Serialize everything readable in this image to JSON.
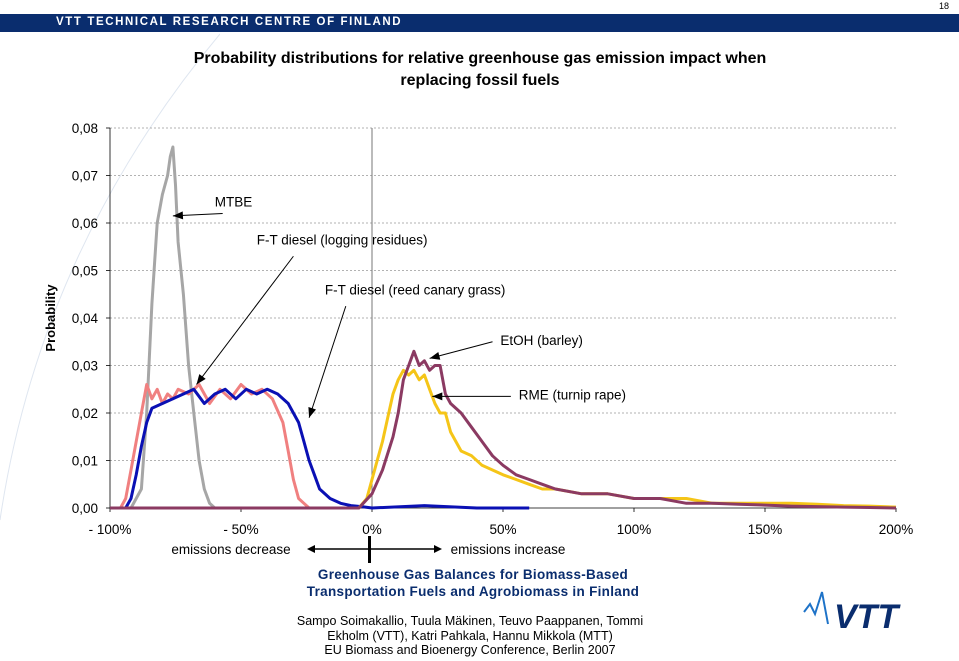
{
  "page_number": "18",
  "header": {
    "org": "VTT TECHNICAL RESEARCH CENTRE OF FINLAND"
  },
  "title_line1": "Probability distributions for relative greenhouse gas emission impact when",
  "title_line2": "replacing fossil fuels",
  "footer": {
    "subtitle_line1": "Greenhouse Gas Balances for Biomass-Based",
    "subtitle_line2": "Transportation Fuels and Agrobiomass in Finland",
    "authors_line1": "Sampo Soimakallio, Tuula Mäkinen, Teuvo Paappanen, Tommi",
    "authors_line2": "Ekholm (VTT), Katri Pahkala, Hannu Mikkola (MTT)",
    "authors_line3": "EU Biomass and Bioenergy Conference, Berlin 2007",
    "logo_text": "VTT"
  },
  "colors": {
    "mtbe": "#a6a6a6",
    "ft_logging": "#f08080",
    "ft_reed": "#0a10b4",
    "etoh": "#8b3a62",
    "rme": "#f5c518",
    "header": "#0a2d6e"
  },
  "chart_data": {
    "type": "line",
    "title": "Probability distributions for relative greenhouse gas emission impact when replacing fossil fuels",
    "ylabel": "Probability",
    "xlabel": "",
    "xlim": [
      -100,
      200
    ],
    "ylim": [
      0,
      0.08
    ],
    "grid": "horizontal dashed",
    "x_tick_labels": [
      "- 100%",
      "- 50%",
      "0%",
      "50%",
      "100%",
      "150%",
      "200%"
    ],
    "x_ticks": [
      -100,
      -50,
      0,
      50,
      100,
      150,
      200
    ],
    "y_tick_labels": [
      "0,00",
      "0,01",
      "0,02",
      "0,03",
      "0,04",
      "0,05",
      "0,06",
      "0,07",
      "0,08"
    ],
    "y_ticks": [
      0,
      0.01,
      0.02,
      0.03,
      0.04,
      0.05,
      0.06,
      0.07,
      0.08
    ],
    "direction_labels": {
      "left": "emissions decrease",
      "right": "emissions increase"
    },
    "series": [
      {
        "name": "MTBE",
        "color": "#a6a6a6",
        "x": [
          -100,
          -92,
          -88,
          -86,
          -84,
          -82,
          -80,
          -78,
          -77,
          -76,
          -75,
          -74,
          -72,
          -70,
          -68,
          -66,
          -64,
          -62,
          -60,
          -58,
          -55,
          -50,
          -40,
          -20
        ],
        "y": [
          0,
          0,
          0.004,
          0.02,
          0.043,
          0.06,
          0.066,
          0.07,
          0.074,
          0.076,
          0.068,
          0.056,
          0.045,
          0.03,
          0.02,
          0.01,
          0.004,
          0.001,
          0,
          0,
          0,
          0,
          0,
          0
        ]
      },
      {
        "name": "F-T diesel (logging residues)",
        "color": "#f08080",
        "x": [
          -100,
          -96,
          -94,
          -92,
          -90,
          -88,
          -86,
          -84,
          -82,
          -80,
          -78,
          -76,
          -74,
          -70,
          -66,
          -62,
          -58,
          -54,
          -50,
          -46,
          -42,
          -38,
          -34,
          -32,
          -30,
          -28,
          -26,
          -24,
          -20,
          -10
        ],
        "y": [
          0,
          0,
          0.002,
          0.008,
          0.014,
          0.02,
          0.026,
          0.023,
          0.025,
          0.022,
          0.024,
          0.023,
          0.025,
          0.024,
          0.026,
          0.022,
          0.025,
          0.023,
          0.026,
          0.024,
          0.025,
          0.023,
          0.018,
          0.012,
          0.006,
          0.002,
          0.001,
          0,
          0,
          0
        ]
      },
      {
        "name": "F-T diesel (reed canary grass)",
        "color": "#0a10b4",
        "x": [
          -100,
          -94,
          -92,
          -90,
          -88,
          -86,
          -84,
          -80,
          -76,
          -72,
          -68,
          -64,
          -60,
          -56,
          -52,
          -48,
          -44,
          -40,
          -36,
          -32,
          -28,
          -26,
          -24,
          -22,
          -20,
          -16,
          -12,
          -8,
          -4,
          0,
          20,
          40,
          60
        ],
        "y": [
          0,
          0,
          0.002,
          0.007,
          0.013,
          0.018,
          0.021,
          0.022,
          0.023,
          0.024,
          0.025,
          0.022,
          0.024,
          0.025,
          0.023,
          0.025,
          0.024,
          0.025,
          0.024,
          0.022,
          0.018,
          0.014,
          0.01,
          0.007,
          0.004,
          0.002,
          0.001,
          0.0005,
          0.0003,
          0,
          0.0005,
          0,
          0
        ]
      },
      {
        "name": "EtOH (barley)",
        "color": "#8b3a62",
        "x": [
          -100,
          -5,
          0,
          4,
          8,
          10,
          12,
          14,
          16,
          18,
          20,
          22,
          24,
          26,
          28,
          30,
          34,
          38,
          42,
          46,
          50,
          55,
          60,
          65,
          70,
          80,
          90,
          100,
          110,
          120,
          130,
          140,
          150,
          160,
          170,
          180,
          190,
          200
        ],
        "y": [
          0,
          0,
          0.003,
          0.008,
          0.015,
          0.02,
          0.027,
          0.03,
          0.033,
          0.03,
          0.031,
          0.029,
          0.03,
          0.03,
          0.024,
          0.022,
          0.02,
          0.017,
          0.014,
          0.011,
          0.009,
          0.007,
          0.006,
          0.005,
          0.004,
          0.003,
          0.003,
          0.002,
          0.002,
          0.001,
          0.001,
          0.0008,
          0.0006,
          0.0004,
          0.0003,
          0.0002,
          0.0001,
          0
        ]
      },
      {
        "name": "RME (turnip rape)",
        "color": "#f5c518",
        "x": [
          -100,
          -5,
          -2,
          0,
          2,
          4,
          6,
          8,
          10,
          12,
          14,
          16,
          18,
          20,
          22,
          24,
          26,
          28,
          30,
          34,
          38,
          42,
          46,
          50,
          55,
          60,
          65,
          70,
          80,
          90,
          100,
          110,
          120,
          130,
          140,
          150,
          160,
          170,
          180,
          190,
          200
        ],
        "y": [
          0,
          0,
          0.002,
          0.006,
          0.01,
          0.014,
          0.019,
          0.024,
          0.027,
          0.029,
          0.028,
          0.029,
          0.027,
          0.028,
          0.025,
          0.022,
          0.02,
          0.02,
          0.016,
          0.012,
          0.011,
          0.009,
          0.008,
          0.007,
          0.006,
          0.005,
          0.004,
          0.004,
          0.003,
          0.003,
          0.002,
          0.002,
          0.002,
          0.001,
          0.001,
          0.001,
          0.001,
          0.0008,
          0.0005,
          0.0004,
          0.0002
        ]
      }
    ],
    "annotations": [
      {
        "text": "MTBE",
        "series": "MTBE"
      },
      {
        "text": "F-T diesel (logging residues)",
        "series": "F-T diesel (logging residues)"
      },
      {
        "text": "F-T diesel (reed canary grass)",
        "series": "F-T diesel (reed canary grass)"
      },
      {
        "text": "EtOH (barley)",
        "series": "EtOH (barley)"
      },
      {
        "text": "RME (turnip rape)",
        "series": "RME (turnip rape)"
      }
    ]
  }
}
